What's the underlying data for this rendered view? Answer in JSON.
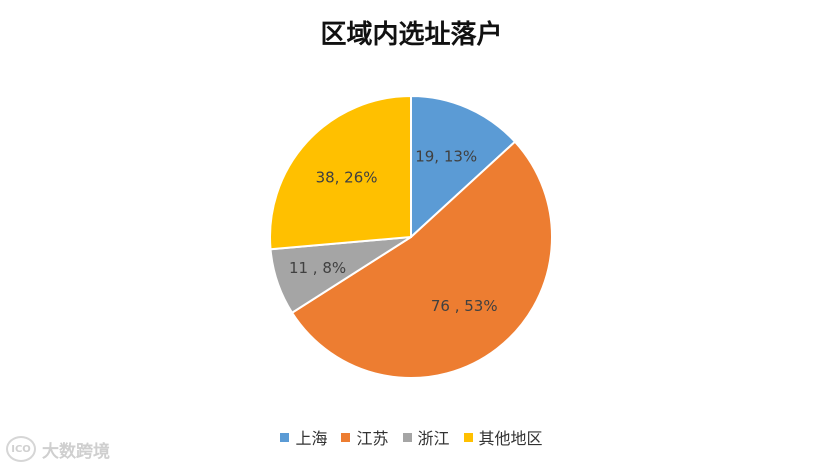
{
  "chart_data": {
    "type": "pie",
    "title": "区域内选址落户",
    "slices": [
      {
        "name": "上海",
        "value": 19,
        "percent": 13,
        "label": "19, 13%",
        "color": "#5B9BD5"
      },
      {
        "name": "江苏",
        "value": 76,
        "percent": 53,
        "label": "76 , 53%",
        "color": "#ED7D31"
      },
      {
        "name": "浙江",
        "value": 11,
        "percent": 8,
        "label": "11 , 8%",
        "color": "#A5A5A5"
      },
      {
        "name": "其他地区",
        "value": 38,
        "percent": 26,
        "label": "38, 26%",
        "color": "#FFC000"
      }
    ],
    "legend_position": "bottom",
    "start_angle": "12 o'clock",
    "direction": "clockwise"
  },
  "legend": {
    "items": [
      {
        "label": "上海",
        "color": "#5B9BD5"
      },
      {
        "label": "江苏",
        "color": "#ED7D31"
      },
      {
        "label": "浙江",
        "color": "#A5A5A5"
      },
      {
        "label": "其他地区",
        "color": "#FFC000"
      }
    ]
  },
  "watermark": {
    "text": "大数跨境",
    "logo_text": "ICO"
  }
}
